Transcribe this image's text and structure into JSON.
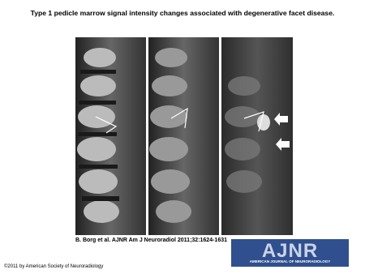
{
  "header": {
    "title": "Type 1 pedicle marrow signal intensity changes associated with degenerative facet disease."
  },
  "citation": "B. Borg et al. AJNR Am J Neuroradiol 2011;32:1624-1631",
  "logo": {
    "name": "AJNR",
    "subtitle": "AMERICAN JOURNAL OF NEURORADIOLOGY"
  },
  "footer": {
    "copyright": "©2011 by American Society of Neuroradiology"
  }
}
